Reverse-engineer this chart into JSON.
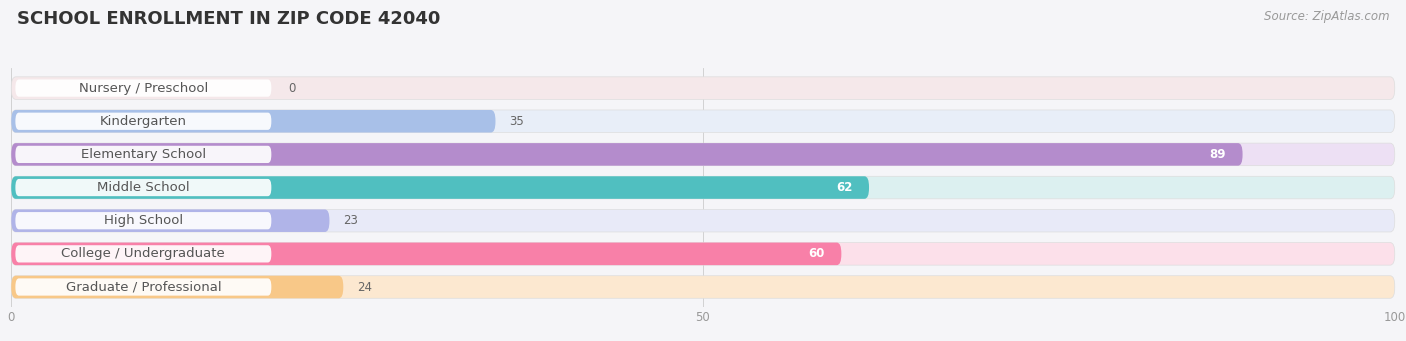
{
  "title": "SCHOOL ENROLLMENT IN ZIP CODE 42040",
  "source": "Source: ZipAtlas.com",
  "categories": [
    "Nursery / Preschool",
    "Kindergarten",
    "Elementary School",
    "Middle School",
    "High School",
    "College / Undergraduate",
    "Graduate / Professional"
  ],
  "values": [
    0,
    35,
    89,
    62,
    23,
    60,
    24
  ],
  "bar_colors": [
    "#f2a0aa",
    "#a8c0e8",
    "#b48ccc",
    "#50bfc0",
    "#b0b4e8",
    "#f880a8",
    "#f8c888"
  ],
  "bar_bg_colors": [
    "#f5e8ea",
    "#e8eef8",
    "#ede0f4",
    "#dcf0f0",
    "#e8eaf8",
    "#fce0ea",
    "#fce8d0"
  ],
  "xlim": [
    0,
    100
  ],
  "xticks": [
    0,
    50,
    100
  ],
  "background_color": "#f5f5f8",
  "title_fontsize": 13,
  "label_fontsize": 9.5,
  "value_fontsize": 8.5,
  "source_fontsize": 8.5
}
